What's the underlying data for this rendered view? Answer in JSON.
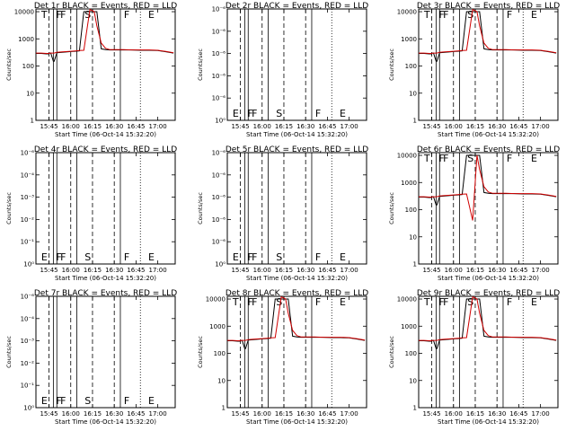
{
  "chart_data": {
    "type": "line",
    "grid_layout": "3x3",
    "x_tick_labels": [
      "15:45",
      "16:00",
      "16:15",
      "16:30",
      "16:45",
      "17:00"
    ],
    "x_label": "Start Time (06-Oct-14 15:32:20)",
    "y_label": "Counts/sec",
    "colors": {
      "events": "#000000",
      "lld": "#d00000"
    },
    "markers": {
      "flat": [
        "E",
        "F",
        "F",
        "S",
        "F",
        "E"
      ],
      "active": [
        "T",
        "F",
        "F",
        "S",
        "F",
        "E"
      ]
    },
    "panels": [
      {
        "title": "Det 1r BLACK = Events, RED = LLD",
        "y_tick_labels": [
          "1",
          "10",
          "100",
          "1000",
          "10000"
        ],
        "has_data": true,
        "variant": "a"
      },
      {
        "title": "Det 2r BLACK = Events, RED = LLD",
        "y_tick_labels": [
          "10⁰",
          "10⁻⁶",
          "10⁻⁶",
          "10⁻⁶",
          "10⁻⁶",
          "10⁻⁶"
        ],
        "has_data": false,
        "variant": "flat"
      },
      {
        "title": "Det 3r BLACK = Events, RED = LLD",
        "y_tick_labels": [
          "1",
          "10",
          "100",
          "1000",
          "10000"
        ],
        "has_data": true,
        "variant": "a"
      },
      {
        "title": "Det 4r BLACK = Events, RED = LLD",
        "y_tick_labels": [
          "10⁰",
          "10⁻¹",
          "10⁻²",
          "10⁻³",
          "10⁻⁴",
          "10⁻⁶"
        ],
        "has_data": false,
        "variant": "flat"
      },
      {
        "title": "Det 5r BLACK = Events, RED = LLD",
        "y_tick_labels": [
          "10⁰",
          "10⁻⁶",
          "10⁻⁶",
          "10⁻⁶",
          "10⁻⁶",
          "10⁻⁶"
        ],
        "has_data": false,
        "variant": "flat"
      },
      {
        "title": "Det 6r BLACK = Events, RED = LLD",
        "y_tick_labels": [
          "1",
          "10",
          "100",
          "1000",
          "10000"
        ],
        "has_data": true,
        "variant": "b"
      },
      {
        "title": "Det 7r BLACK = Events, RED = LLD",
        "y_tick_labels": [
          "10⁰",
          "10⁻¹",
          "10⁻²",
          "10⁻³",
          "10⁻⁴",
          "10⁻⁶"
        ],
        "has_data": false,
        "variant": "flat"
      },
      {
        "title": "Det 8r BLACK = Events, RED = LLD",
        "y_tick_labels": [
          "1",
          "10",
          "100",
          "1000",
          "10000"
        ],
        "has_data": true,
        "variant": "a"
      },
      {
        "title": "Det 9r BLACK = Events, RED = LLD",
        "y_tick_labels": [
          "1",
          "10",
          "100",
          "1000",
          "10000"
        ],
        "has_data": true,
        "variant": "a"
      }
    ],
    "series_profile": {
      "x": [
        15.6,
        15.66,
        15.72,
        15.75,
        15.76,
        15.77,
        15.8,
        15.81,
        15.84,
        15.9,
        15.96,
        16.0,
        16.05,
        16.1,
        16.15,
        16.22,
        16.27,
        16.3,
        16.35,
        16.4,
        16.45,
        16.52,
        16.6,
        16.7,
        16.8,
        16.9,
        17.0,
        17.1,
        17.18
      ],
      "events": [
        290,
        290,
        280,
        280,
        300,
        300,
        150,
        150,
        310,
        320,
        330,
        340,
        350,
        360,
        10000,
        10000,
        10000,
        10000,
        430,
        400,
        390,
        390,
        390,
        390,
        380,
        380,
        370,
        330,
        300
      ],
      "lld": [
        300,
        300,
        290,
        290,
        300,
        300,
        300,
        300,
        320,
        330,
        340,
        350,
        360,
        370,
        380,
        12000,
        10000,
        3000,
        700,
        450,
        400,
        400,
        400,
        390,
        390,
        390,
        380,
        340,
        310
      ]
    }
  }
}
